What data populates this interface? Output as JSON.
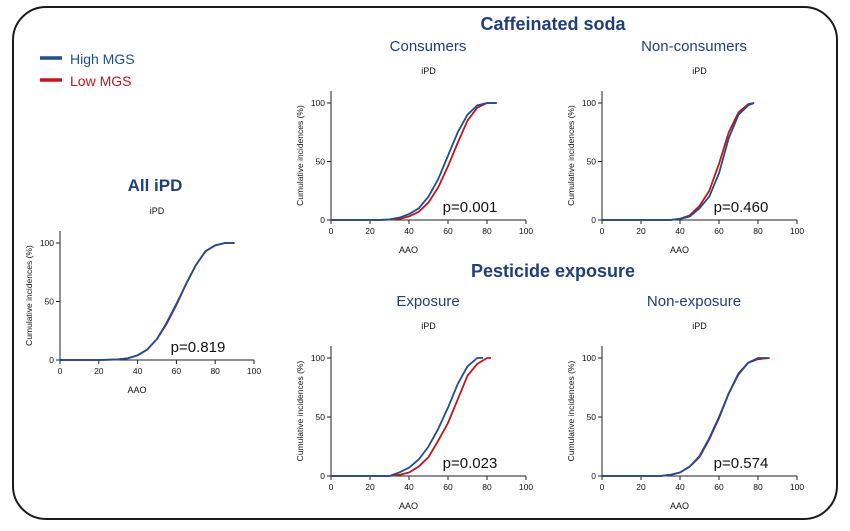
{
  "colors": {
    "high": "#1f4e8c",
    "low": "#c0161c",
    "heading": "#1f3f78",
    "axis": "#222222"
  },
  "legend": {
    "high_label": "High MGS",
    "low_label": "Low MGS"
  },
  "headings": {
    "all": "All iPD",
    "caffeine": "Caffeinated soda",
    "pesticide": "Pesticide exposure",
    "consumers": "Consumers",
    "nonconsumers": "Non-consumers",
    "exposure": "Exposure",
    "nonexposure": "Non-exposure"
  },
  "chart_data": [
    {
      "id": "all",
      "type": "line",
      "subtitle": "iPD",
      "xlabel": "AAO",
      "ylabel": "Cumulative incidences (%)",
      "xlim": [
        0,
        100
      ],
      "ylim": [
        0,
        100
      ],
      "xticks": [
        0,
        20,
        40,
        60,
        80,
        100
      ],
      "yticks": [
        0,
        50,
        100
      ],
      "pvalue": "p=0.819",
      "series": [
        {
          "name": "High MGS",
          "x": [
            20,
            30,
            35,
            40,
            45,
            50,
            55,
            60,
            65,
            70,
            75,
            80,
            85,
            90
          ],
          "y": [
            0,
            0.5,
            1.5,
            4,
            9,
            18,
            32,
            48,
            65,
            81,
            93,
            98,
            100,
            100
          ]
        },
        {
          "name": "Low MGS",
          "x": [
            20,
            30,
            35,
            40,
            45,
            50,
            55,
            60,
            65,
            70,
            75,
            80,
            85,
            90
          ],
          "y": [
            0,
            0.5,
            1.5,
            4,
            9,
            18,
            31,
            47,
            65,
            81,
            93,
            98,
            100,
            100
          ]
        }
      ]
    },
    {
      "id": "consumers",
      "type": "line",
      "subtitle": "iPD",
      "xlabel": "AAO",
      "ylabel": "Cumulative incidences (%)",
      "xlim": [
        0,
        100
      ],
      "ylim": [
        0,
        100
      ],
      "xticks": [
        0,
        20,
        40,
        60,
        80,
        100
      ],
      "yticks": [
        0,
        50,
        100
      ],
      "pvalue": "p=0.001",
      "series": [
        {
          "name": "High MGS",
          "x": [
            25,
            30,
            35,
            40,
            45,
            50,
            55,
            60,
            65,
            70,
            75,
            80,
            85
          ],
          "y": [
            0,
            0.5,
            2,
            5,
            10,
            20,
            35,
            55,
            75,
            90,
            98,
            100,
            100
          ]
        },
        {
          "name": "Low MGS",
          "x": [
            25,
            30,
            35,
            40,
            45,
            50,
            55,
            60,
            65,
            70,
            75,
            80,
            85
          ],
          "y": [
            0,
            0.3,
            1,
            3,
            7,
            15,
            28,
            46,
            66,
            85,
            96,
            100,
            100
          ]
        }
      ]
    },
    {
      "id": "nonconsumers",
      "type": "line",
      "subtitle": "iPD",
      "xlabel": "AAO",
      "ylabel": "Cumulative incidences (%)",
      "xlim": [
        0,
        100
      ],
      "ylim": [
        0,
        100
      ],
      "xticks": [
        0,
        20,
        40,
        60,
        80,
        100
      ],
      "yticks": [
        0,
        50,
        100
      ],
      "pvalue": "p=0.460",
      "series": [
        {
          "name": "High MGS",
          "x": [
            35,
            40,
            45,
            50,
            55,
            60,
            65,
            70,
            75,
            78
          ],
          "y": [
            0,
            1,
            3,
            10,
            20,
            40,
            70,
            90,
            98,
            100
          ]
        },
        {
          "name": "Low MGS",
          "x": [
            35,
            40,
            45,
            50,
            55,
            60,
            65,
            70,
            75,
            78
          ],
          "y": [
            0,
            1,
            4,
            12,
            25,
            48,
            75,
            92,
            99,
            100
          ]
        }
      ]
    },
    {
      "id": "exposure",
      "type": "line",
      "subtitle": "iPD",
      "xlabel": "AAO",
      "ylabel": "Cumulative incidences (%)",
      "xlim": [
        0,
        100
      ],
      "ylim": [
        0,
        100
      ],
      "xticks": [
        0,
        20,
        40,
        60,
        80,
        100
      ],
      "yticks": [
        0,
        50,
        100
      ],
      "pvalue": "p=0.023",
      "series": [
        {
          "name": "High MGS",
          "x": [
            30,
            35,
            40,
            45,
            50,
            55,
            60,
            65,
            70,
            75,
            78
          ],
          "y": [
            0,
            3,
            7,
            14,
            25,
            40,
            58,
            78,
            93,
            100,
            100
          ]
        },
        {
          "name": "Low MGS",
          "x": [
            30,
            35,
            40,
            45,
            50,
            55,
            60,
            65,
            70,
            75,
            80,
            82
          ],
          "y": [
            0,
            1,
            3,
            8,
            16,
            30,
            45,
            65,
            85,
            95,
            100,
            100
          ]
        }
      ]
    },
    {
      "id": "nonexposure",
      "type": "line",
      "subtitle": "iPD",
      "xlabel": "AAO",
      "ylabel": "Cumulative incidences (%)",
      "xlim": [
        0,
        100
      ],
      "ylim": [
        0,
        100
      ],
      "xticks": [
        0,
        20,
        40,
        60,
        80,
        100
      ],
      "yticks": [
        0,
        50,
        100
      ],
      "pvalue": "p=0.574",
      "series": [
        {
          "name": "High MGS",
          "x": [
            30,
            35,
            40,
            45,
            50,
            55,
            60,
            65,
            70,
            75,
            80,
            85
          ],
          "y": [
            0,
            1,
            3,
            8,
            17,
            32,
            50,
            70,
            87,
            96,
            100,
            100
          ]
        },
        {
          "name": "Low MGS",
          "x": [
            30,
            35,
            40,
            45,
            50,
            55,
            60,
            65,
            70,
            75,
            80,
            86
          ],
          "y": [
            0,
            1,
            3,
            8,
            16,
            31,
            49,
            70,
            86,
            96,
            99,
            100
          ]
        }
      ]
    }
  ]
}
